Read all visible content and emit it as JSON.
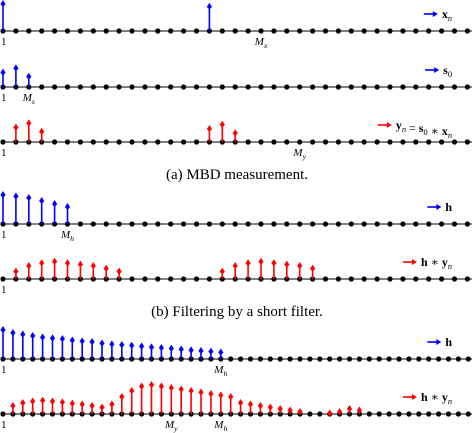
{
  "colors": {
    "blue": "#0000ff",
    "red": "#ff0000",
    "black": "#000000"
  },
  "panels": [
    {
      "id": "x_n",
      "color": "blue",
      "legend": "x_n",
      "stems": [
        [
          0,
          1.0
        ],
        [
          16,
          0.9
        ]
      ],
      "ticks": [
        {
          "k": 0,
          "label": "1"
        },
        {
          "k": 20,
          "label": "M_x"
        }
      ]
    },
    {
      "id": "s_0",
      "color": "blue",
      "legend": "s_0",
      "stems": [
        [
          0,
          0.55
        ],
        [
          1,
          0.7
        ],
        [
          2,
          0.4
        ]
      ],
      "ticks": [
        {
          "k": 0,
          "label": "1"
        },
        {
          "k": 2,
          "label": "M_s"
        }
      ]
    },
    {
      "id": "y_n",
      "color": "red",
      "legend": "y_n = s_0 * x_n",
      "stems": [
        [
          1,
          0.55
        ],
        [
          2,
          0.7
        ],
        [
          3,
          0.4
        ],
        [
          16,
          0.5
        ],
        [
          17,
          0.65
        ],
        [
          18,
          0.35
        ]
      ],
      "ticks": [
        {
          "k": 0,
          "label": "1"
        },
        {
          "k": 23,
          "label": "M_y"
        }
      ]
    },
    {
      "id": "h_short",
      "color": "blue",
      "legend": "h",
      "stems": [
        [
          0,
          1.0
        ],
        [
          1,
          0.95
        ],
        [
          2,
          0.9
        ],
        [
          3,
          0.8
        ],
        [
          4,
          0.7
        ],
        [
          5,
          0.6
        ]
      ],
      "ticks": [
        {
          "k": 0,
          "label": "1"
        },
        {
          "k": 5,
          "label": "M_h"
        }
      ]
    },
    {
      "id": "h_conv_y_short",
      "color": "red",
      "legend": "h * y_n",
      "stems": [
        [
          1,
          0.3
        ],
        [
          2,
          0.5
        ],
        [
          3,
          0.6
        ],
        [
          4,
          0.65
        ],
        [
          5,
          0.6
        ],
        [
          6,
          0.55
        ],
        [
          7,
          0.5
        ],
        [
          8,
          0.4
        ],
        [
          9,
          0.3
        ],
        [
          17,
          0.3
        ],
        [
          18,
          0.5
        ],
        [
          19,
          0.6
        ],
        [
          20,
          0.65
        ],
        [
          21,
          0.6
        ],
        [
          22,
          0.55
        ],
        [
          23,
          0.5
        ],
        [
          24,
          0.4
        ]
      ],
      "ticks": [
        {
          "k": 0,
          "label": "1"
        }
      ]
    },
    {
      "id": "h_long",
      "color": "blue",
      "legend": "h",
      "stems": [
        [
          0,
          1.0
        ],
        [
          1,
          0.9
        ],
        [
          2,
          0.85
        ],
        [
          3,
          0.8
        ],
        [
          4,
          0.75
        ],
        [
          5,
          0.72
        ],
        [
          6,
          0.7
        ],
        [
          7,
          0.65
        ],
        [
          8,
          0.62
        ],
        [
          9,
          0.6
        ],
        [
          10,
          0.55
        ],
        [
          11,
          0.52
        ],
        [
          12,
          0.5
        ],
        [
          13,
          0.48
        ],
        [
          14,
          0.45
        ],
        [
          15,
          0.42
        ],
        [
          16,
          0.4
        ],
        [
          17,
          0.38
        ],
        [
          18,
          0.35
        ],
        [
          19,
          0.32
        ],
        [
          20,
          0.3
        ],
        [
          21,
          0.28
        ],
        [
          22,
          0.25
        ]
      ],
      "ticks": [
        {
          "k": 0,
          "label": "1"
        },
        {
          "k": 22,
          "label": "M_h"
        }
      ]
    },
    {
      "id": "h_conv_y_long",
      "color": "red",
      "legend": "h * y_n",
      "stems": [
        [
          1,
          0.3
        ],
        [
          2,
          0.4
        ],
        [
          3,
          0.45
        ],
        [
          4,
          0.48
        ],
        [
          5,
          0.45
        ],
        [
          6,
          0.42
        ],
        [
          7,
          0.38
        ],
        [
          8,
          0.35
        ],
        [
          9,
          0.3
        ],
        [
          10,
          0.25
        ],
        [
          11,
          0.35
        ],
        [
          12,
          0.6
        ],
        [
          13,
          0.8
        ],
        [
          14,
          0.95
        ],
        [
          15,
          1.0
        ],
        [
          16,
          0.95
        ],
        [
          17,
          0.9
        ],
        [
          18,
          0.85
        ],
        [
          19,
          0.8
        ],
        [
          20,
          0.75
        ],
        [
          21,
          0.7
        ],
        [
          22,
          0.65
        ],
        [
          23,
          0.6
        ],
        [
          24,
          0.4
        ],
        [
          25,
          0.35
        ],
        [
          26,
          0.3
        ],
        [
          27,
          0.25
        ],
        [
          28,
          0.2
        ],
        [
          29,
          0.15
        ],
        [
          30,
          0.1
        ],
        [
          33,
          0.05
        ],
        [
          34,
          0.1
        ],
        [
          35,
          0.2
        ],
        [
          36,
          0.15
        ]
      ],
      "ticks": [
        {
          "k": 0,
          "label": "1"
        },
        {
          "k": 17,
          "label": "M_y"
        },
        {
          "k": 22,
          "label": "M_h"
        }
      ]
    }
  ],
  "captions": {
    "a": "(a) MBD measurement.",
    "b": "(b) Filtering by a short filter."
  }
}
